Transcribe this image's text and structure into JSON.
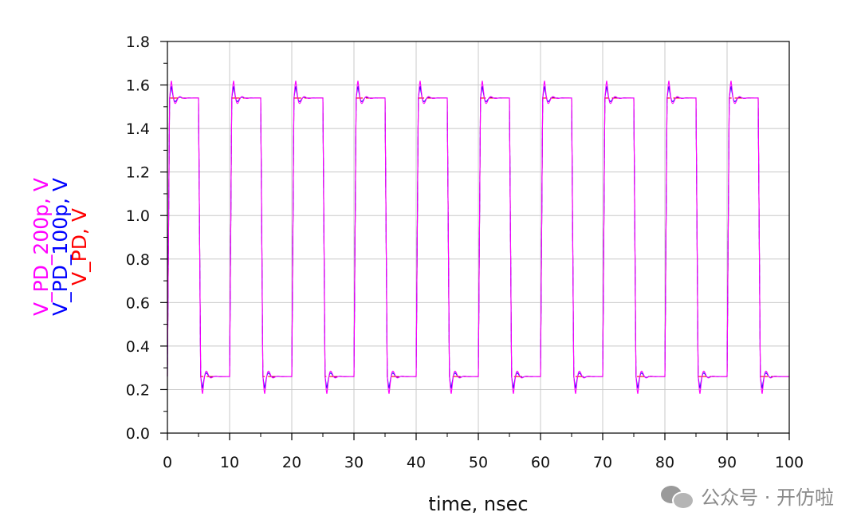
{
  "chart_data": {
    "type": "line",
    "xlabel": "time, nsec",
    "ylabel_lines": [
      {
        "text": "V_PD_200p, V",
        "color": "#ff00ff"
      },
      {
        "text": "V_PD_100p, V",
        "color": "#0000ff"
      },
      {
        "text": "V_PD, V",
        "color": "#ff0000"
      }
    ],
    "xlim": [
      0,
      100
    ],
    "ylim": [
      0.0,
      1.8
    ],
    "xticks": [
      "0",
      "10",
      "20",
      "30",
      "40",
      "50",
      "60",
      "70",
      "80",
      "90",
      "100"
    ],
    "yticks": [
      "0.0",
      "0.2",
      "0.4",
      "0.6",
      "0.8",
      "1.0",
      "1.2",
      "1.4",
      "1.6",
      "1.8"
    ],
    "grid": true,
    "signal": {
      "period_ns": 10,
      "duty": 0.5,
      "high_v": 1.54,
      "low_v": 0.26
    },
    "series": [
      {
        "name": "V_PD",
        "color": "#ff0000",
        "overshoot_peak_v": 1.54,
        "undershoot_min_v": 0.26
      },
      {
        "name": "V_PD_100p",
        "color": "#0000ff",
        "overshoot_peak_v": 1.63,
        "undershoot_min_v": 0.17
      },
      {
        "name": "V_PD_200p",
        "color": "#ff00ff",
        "overshoot_peak_v": 1.68,
        "undershoot_min_v": 0.12
      }
    ]
  },
  "watermark": {
    "text": "公众号 · 开仿啦",
    "icon": "wechat-icon"
  }
}
